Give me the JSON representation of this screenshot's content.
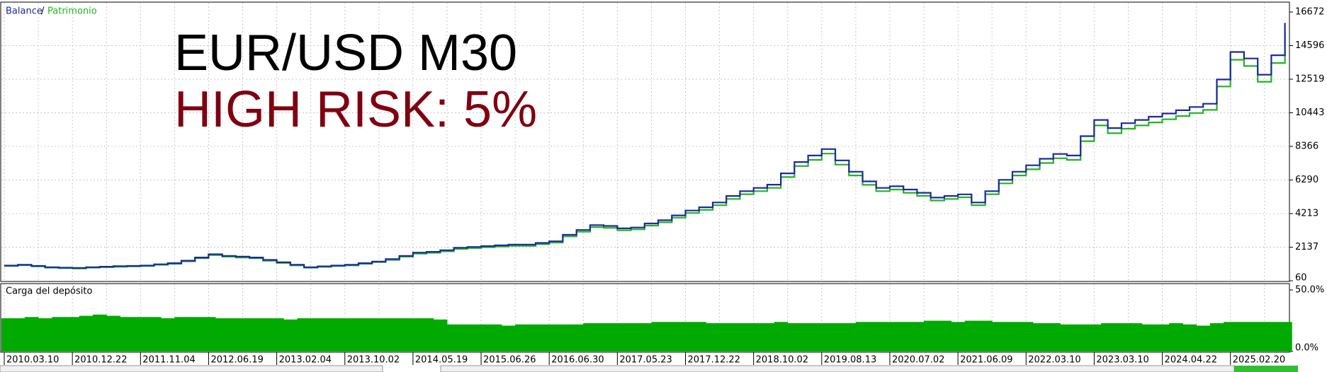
{
  "chart_data": [
    {
      "type": "line",
      "legend": [
        "Balance",
        "/",
        "Patrimonio"
      ],
      "annotations": [
        "EUR/USD M30",
        "HIGH RISK: 5%"
      ],
      "categories": [
        "2010.03.10",
        null,
        null,
        null,
        null,
        "2010.12.22",
        null,
        null,
        null,
        null,
        "2011.11.04",
        null,
        null,
        null,
        null,
        "2012.06.19",
        null,
        null,
        null,
        null,
        "2013.02.04",
        null,
        null,
        null,
        null,
        "2013.10.02",
        null,
        null,
        null,
        null,
        "2014.05.19",
        null,
        null,
        null,
        null,
        "2015.06.26",
        null,
        null,
        null,
        null,
        "2016.06.30",
        null,
        null,
        null,
        null,
        "2017.05.23",
        null,
        null,
        null,
        null,
        "2017.12.22",
        null,
        null,
        null,
        null,
        "2018.10.02",
        null,
        null,
        null,
        null,
        "2019.08.13",
        null,
        null,
        null,
        null,
        "2020.07.02",
        null,
        null,
        null,
        null,
        "2021.06.09",
        null,
        null,
        null,
        null,
        "2022.03.10",
        null,
        null,
        null,
        null,
        "2023.03.10",
        null,
        null,
        null,
        null,
        "2024.04.22",
        null,
        null,
        null,
        null,
        "2025.02.20",
        null,
        null,
        null,
        null
      ],
      "series": [
        {
          "name": "Patrimonio",
          "color": "#22b422",
          "values": [
            970,
            1020,
            950,
            870,
            840,
            820,
            870,
            900,
            930,
            950,
            970,
            1050,
            1110,
            1260,
            1450,
            1650,
            1550,
            1500,
            1450,
            1300,
            1160,
            1010,
            870,
            920,
            970,
            1010,
            1110,
            1210,
            1350,
            1550,
            1740,
            1790,
            1880,
            2030,
            2080,
            2130,
            2170,
            2220,
            2220,
            2320,
            2420,
            2800,
            3090,
            3380,
            3330,
            3180,
            3240,
            3470,
            3670,
            3960,
            4250,
            4440,
            4730,
            5120,
            5410,
            5600,
            5800,
            6470,
            7150,
            7530,
            7920,
            7240,
            6570,
            5990,
            5600,
            5700,
            5500,
            5310,
            5020,
            5120,
            5220,
            4730,
            5410,
            6080,
            6570,
            6950,
            7340,
            7630,
            7530,
            8690,
            9660,
            9180,
            9460,
            9660,
            9850,
            10040,
            10240,
            10430,
            10620,
            12070,
            13720,
            13330,
            12360,
            13520,
            15450
          ]
        },
        {
          "name": "Balance",
          "color": "#1c2a9c",
          "values": [
            1000,
            1050,
            980,
            900,
            870,
            850,
            900,
            930,
            960,
            980,
            1000,
            1080,
            1150,
            1300,
            1500,
            1700,
            1600,
            1550,
            1500,
            1350,
            1200,
            1050,
            900,
            950,
            1000,
            1050,
            1150,
            1250,
            1400,
            1600,
            1800,
            1850,
            1950,
            2100,
            2150,
            2200,
            2250,
            2300,
            2300,
            2400,
            2500,
            2900,
            3200,
            3500,
            3450,
            3300,
            3350,
            3600,
            3800,
            4100,
            4400,
            4600,
            4900,
            5300,
            5600,
            5800,
            6000,
            6700,
            7400,
            7800,
            8200,
            7500,
            6800,
            6200,
            5800,
            5900,
            5700,
            5500,
            5200,
            5300,
            5400,
            4900,
            5600,
            6300,
            6800,
            7200,
            7600,
            7900,
            7800,
            9000,
            10000,
            9500,
            9800,
            10000,
            10200,
            10400,
            10600,
            10800,
            11000,
            12500,
            14200,
            13800,
            12800,
            14000,
            16000
          ]
        }
      ],
      "ylim": [
        60,
        16672
      ],
      "yticks": [
        60,
        2137,
        4213,
        6290,
        8366,
        10443,
        12519,
        14596,
        16672
      ],
      "grid": true
    },
    {
      "type": "bar",
      "title": "Carga del depósito",
      "color": "#00aa00",
      "values": [
        27,
        27,
        28,
        27,
        28,
        28,
        29,
        30,
        29,
        28,
        28,
        28,
        27,
        28,
        28,
        28,
        27,
        27,
        27,
        27,
        27,
        26,
        27,
        27,
        27,
        27,
        27,
        27,
        27,
        27,
        27,
        27,
        26,
        22,
        22,
        22,
        22,
        21,
        22,
        22,
        22,
        22,
        22,
        23,
        23,
        23,
        23,
        23,
        24,
        24,
        24,
        24,
        23,
        23,
        23,
        23,
        23,
        24,
        23,
        23,
        23,
        23,
        23,
        24,
        24,
        24,
        24,
        24,
        25,
        25,
        24,
        25,
        25,
        24,
        24,
        24,
        23,
        23,
        22,
        22,
        22,
        23,
        23,
        23,
        22,
        22,
        23,
        22,
        21,
        23,
        24,
        24,
        24,
        24,
        24
      ],
      "ylim": [
        0,
        50
      ],
      "yticks": [
        {
          "value": 0,
          "label": "0.0%"
        },
        {
          "value": 50,
          "label": "50.0%"
        }
      ]
    }
  ]
}
